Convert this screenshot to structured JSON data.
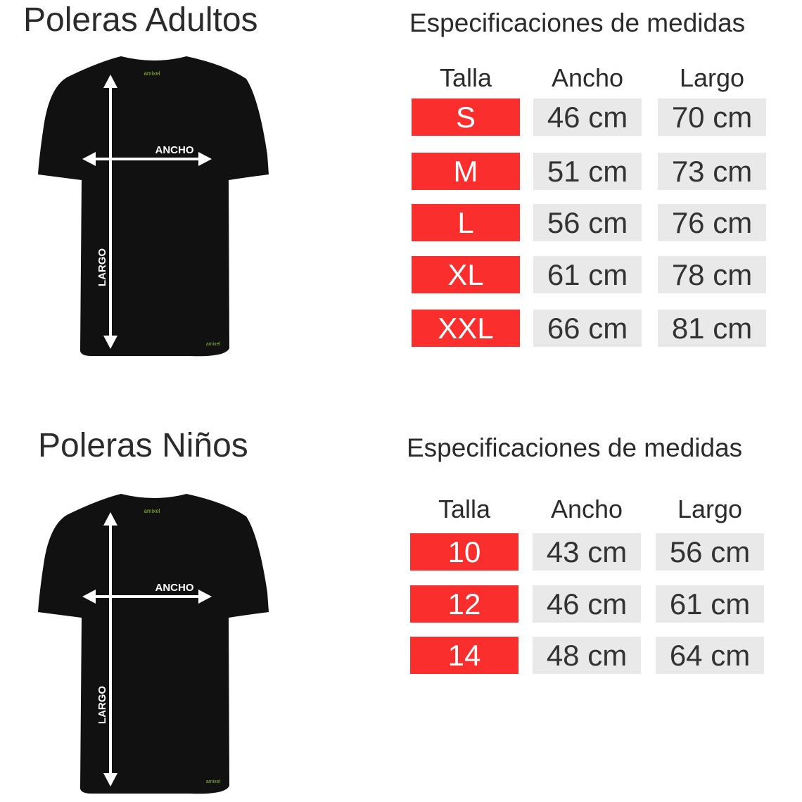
{
  "sections": [
    {
      "title": "Poleras  Adultos",
      "spec_title": "Especificaciones de medidas",
      "headers": [
        "Talla",
        "Ancho",
        "Largo"
      ],
      "rows": [
        [
          "S",
          "46 cm",
          "70 cm"
        ],
        [
          "M",
          "51 cm",
          "73 cm"
        ],
        [
          "L",
          "56 cm",
          "76 cm"
        ],
        [
          "XL",
          "61 cm",
          "78 cm"
        ],
        [
          "XXL",
          "66 cm",
          "81 cm"
        ]
      ],
      "diagram": {
        "width_label": "ANCHO",
        "length_label": "LARGO",
        "logo": "amixel"
      }
    },
    {
      "title": "Poleras  Niños",
      "spec_title": "Especificaciones de medidas",
      "headers": [
        "Talla",
        "Ancho",
        "Largo"
      ],
      "rows": [
        [
          "10",
          "43 cm",
          "56 cm"
        ],
        [
          "12",
          "46 cm",
          "61 cm"
        ],
        [
          "14",
          "48 cm",
          "64 cm"
        ]
      ],
      "diagram": {
        "width_label": "ANCHO",
        "length_label": "LARGO",
        "logo": "amixel"
      }
    }
  ],
  "colors": {
    "size_cell": "#fb2e2e",
    "value_cell": "#e9e9e9",
    "shirt": "#111111",
    "logo": "#8dbb2a"
  }
}
